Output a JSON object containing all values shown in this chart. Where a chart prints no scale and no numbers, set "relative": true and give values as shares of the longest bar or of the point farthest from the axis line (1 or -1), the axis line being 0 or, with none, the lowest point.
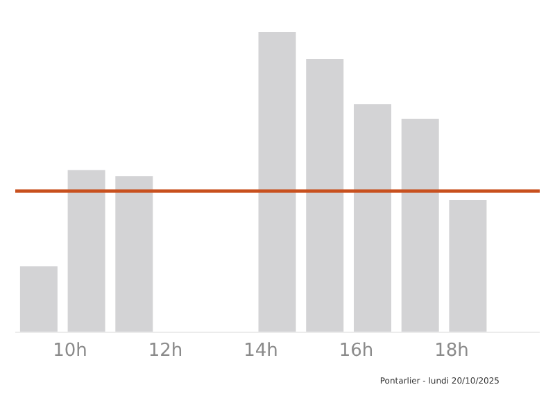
{
  "chart_data": {
    "type": "bar",
    "relative": true,
    "categories": [
      null,
      "10h",
      null,
      "12h",
      null,
      "14h",
      null,
      "16h",
      null,
      "18h",
      null
    ],
    "values": [
      0.22,
      0.54,
      0.52,
      0,
      0,
      1,
      0.91,
      0.76,
      0.71,
      0.44,
      0
    ],
    "color": "#d3d3d5",
    "ref_lines": [
      {
        "axis": "y",
        "value": 0.47,
        "color": "#c8501e",
        "line_style": "solid"
      }
    ],
    "annotations": [
      "Pontarlier - lundi 20/10/2025"
    ]
  }
}
